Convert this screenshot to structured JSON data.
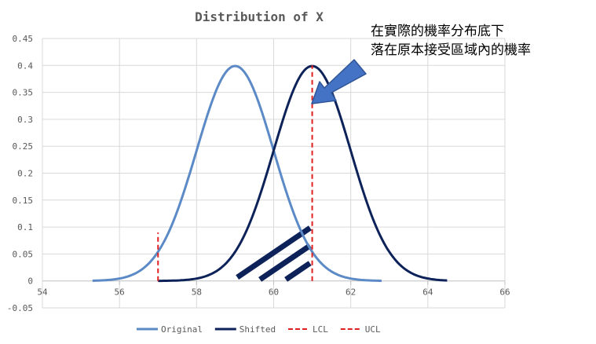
{
  "chart_data": {
    "type": "line",
    "title": "Distribution of X",
    "xlabel": "",
    "ylabel": "",
    "xlim": [
      54,
      66
    ],
    "ylim": [
      -0.05,
      0.45
    ],
    "xticks": [
      54,
      56,
      58,
      60,
      62,
      64,
      66
    ],
    "yticks": [
      -0.05,
      0,
      0.05,
      0.1,
      0.15,
      0.2,
      0.25,
      0.3,
      0.35,
      0.4,
      0.45
    ],
    "ytick_labels": [
      "-0.05",
      "0",
      "0.05",
      "0.1",
      "0.15",
      "0.2",
      "0.25",
      "0.3",
      "0.35",
      "0.4",
      "0.45"
    ],
    "grid": true,
    "legend_position": "bottom",
    "series": [
      {
        "name": "Original",
        "kind": "normal",
        "mean": 59,
        "sd": 1,
        "x_range": [
          55.3,
          62.8
        ],
        "color": "#5B8AC6",
        "dash": false
      },
      {
        "name": "Shifted",
        "kind": "normal",
        "mean": 61,
        "sd": 1,
        "x_range": [
          57.0,
          64.5
        ],
        "color": "#0D2259",
        "dash": false
      },
      {
        "name": "LCL",
        "kind": "vline",
        "x": 57,
        "y_range": [
          0,
          0.09
        ],
        "color": "#E02020",
        "dash": true
      },
      {
        "name": "UCL",
        "kind": "vline",
        "x": 61,
        "y_range": [
          0,
          0.4
        ],
        "color": "#E02020",
        "dash": true
      }
    ],
    "hatch_region": {
      "x_from": 59,
      "x_to": 61,
      "color": "#0D2259"
    },
    "annotation": {
      "lines": [
        "在實際的機率分布底下",
        "落在原本接受區域內的機率"
      ],
      "arrow_color": "#4472C4"
    }
  }
}
